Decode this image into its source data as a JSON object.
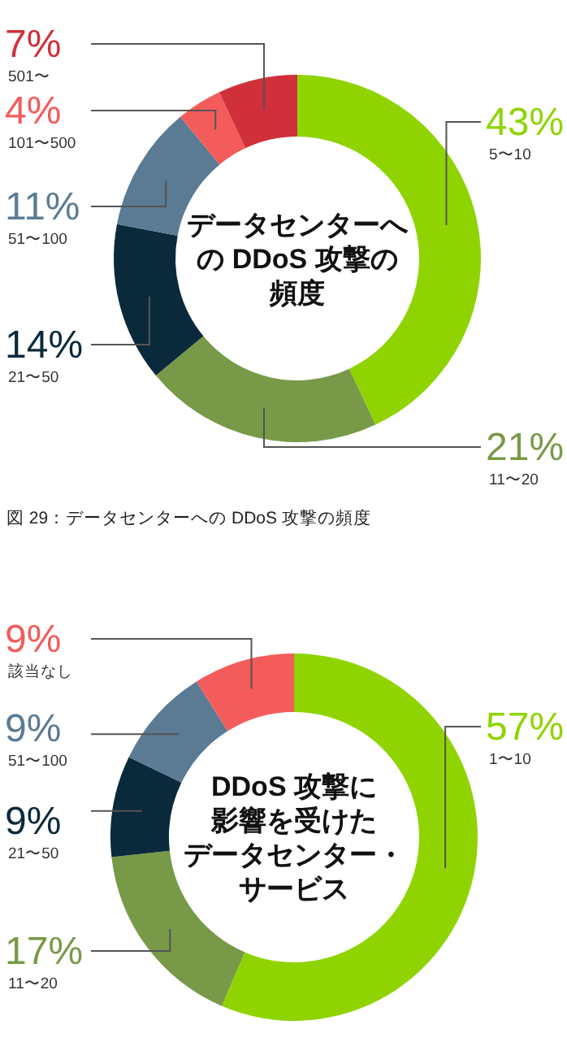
{
  "chart_data": [
    {
      "type": "donut",
      "title": "データセンターへの DDoS 攻撃の頻度",
      "categories": [
        "5〜10",
        "11〜20",
        "21〜50",
        "51〜100",
        "101〜500",
        "501〜"
      ],
      "values": [
        43,
        21,
        14,
        11,
        4,
        7
      ],
      "colors": [
        "#8fd400",
        "#789a48",
        "#0a2a3c",
        "#5b7b94",
        "#f45b5b",
        "#d0303a"
      ],
      "value_labels": [
        "43%",
        "21%",
        "14%",
        "11%",
        "4%",
        "7%"
      ],
      "annotations": [
        "図 29：データセンターへの DDoS 攻撃の頻度"
      ]
    },
    {
      "type": "donut",
      "title": "DDoS 攻撃に影響を受けたデータセンター・サービス",
      "categories": [
        "1〜10",
        "11〜20",
        "21〜50",
        "51〜100",
        "該当なし"
      ],
      "values": [
        57,
        17,
        9,
        9,
        9
      ],
      "colors": [
        "#8fd400",
        "#789a48",
        "#0a2a3c",
        "#5b7b94",
        "#f45b5b"
      ],
      "value_labels": [
        "57%",
        "17%",
        "9%",
        "9%",
        "9%"
      ]
    }
  ]
}
